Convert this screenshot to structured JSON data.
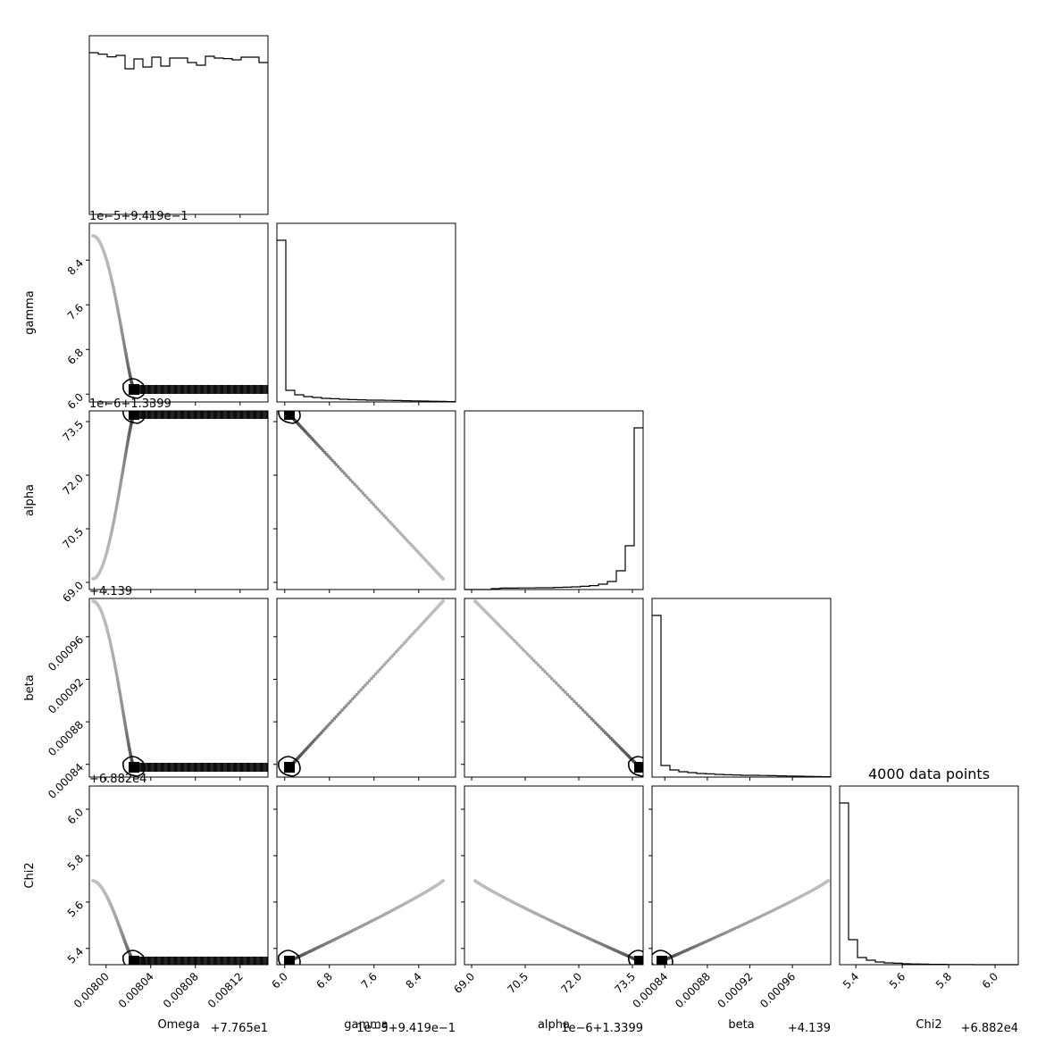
{
  "chart_data": {
    "type": "corner",
    "title": "4000 data points",
    "parameters": [
      {
        "name": "Omega",
        "label": "Omega",
        "offset_text": "+7.765e1",
        "ticks": [
          {
            "v": 0.008,
            "label": "0.00800"
          },
          {
            "v": 0.00804,
            "label": "0.00804"
          },
          {
            "v": 0.00808,
            "label": "0.00808"
          },
          {
            "v": 0.00812,
            "label": "0.00812"
          }
        ],
        "range": [
          0.007985,
          0.008145
        ]
      },
      {
        "name": "gamma",
        "label": "gamma",
        "offset_text": "1e−5+9.419e−1",
        "ticks": [
          {
            "v": 6.0,
            "label": "6.0"
          },
          {
            "v": 6.8,
            "label": "6.8"
          },
          {
            "v": 7.6,
            "label": "7.6"
          },
          {
            "v": 8.4,
            "label": "8.4"
          }
        ],
        "range": [
          5.86,
          9.06
        ]
      },
      {
        "name": "alpha",
        "label": "alpha",
        "offset_text": "1e−6+1.3399",
        "ticks": [
          {
            "v": 69.0,
            "label": "69.0"
          },
          {
            "v": 70.5,
            "label": "70.5"
          },
          {
            "v": 72.0,
            "label": "72.0"
          },
          {
            "v": 73.5,
            "label": "73.5"
          }
        ],
        "range": [
          68.8,
          73.8
        ]
      },
      {
        "name": "beta",
        "label": "beta",
        "offset_text": "+4.139",
        "ticks": [
          {
            "v": 0.00084,
            "label": "0.00084"
          },
          {
            "v": 0.00088,
            "label": "0.00088"
          },
          {
            "v": 0.00092,
            "label": "0.00092"
          },
          {
            "v": 0.00096,
            "label": "0.00096"
          }
        ],
        "range": [
          0.000828,
          0.000996
        ]
      },
      {
        "name": "Chi2",
        "label": "Chi2",
        "offset_text": "+6.882e4",
        "ticks": [
          {
            "v": 5.4,
            "label": "5.4"
          },
          {
            "v": 5.6,
            "label": "5.6"
          },
          {
            "v": 5.8,
            "label": "5.8"
          },
          {
            "v": 6.0,
            "label": "6.0"
          }
        ],
        "range": [
          5.33,
          6.1
        ]
      }
    ],
    "histograms": [
      [
        0.905,
        0.897,
        0.882,
        0.89,
        0.815,
        0.87,
        0.825,
        0.88,
        0.83,
        0.875,
        0.875,
        0.85,
        0.835,
        0.885,
        0.875,
        0.872,
        0.865,
        0.88,
        0.88,
        0.85
      ],
      [
        0.905,
        0.065,
        0.04,
        0.03,
        0.025,
        0.02,
        0.018,
        0.015,
        0.013,
        0.012,
        0.01,
        0.01,
        0.009,
        0.008,
        0.007,
        0.006,
        0.005,
        0.004,
        0.003,
        0.002
      ],
      [
        0.0,
        0.0,
        0.0,
        0.005,
        0.008,
        0.008,
        0.009,
        0.009,
        0.01,
        0.01,
        0.012,
        0.013,
        0.015,
        0.018,
        0.022,
        0.03,
        0.045,
        0.105,
        0.245,
        0.905
      ],
      [
        0.905,
        0.065,
        0.04,
        0.03,
        0.025,
        0.02,
        0.018,
        0.015,
        0.013,
        0.012,
        0.01,
        0.01,
        0.009,
        0.008,
        0.007,
        0.006,
        0.005,
        0.004,
        0.003,
        0.002
      ],
      [
        0.905,
        0.14,
        0.04,
        0.025,
        0.015,
        0.01,
        0.008,
        0.005,
        0.004,
        0.003,
        0.002,
        0.002,
        0.001,
        0.001,
        0.001,
        0.0,
        0.0,
        0.0,
        0.0,
        0.0
      ]
    ]
  }
}
